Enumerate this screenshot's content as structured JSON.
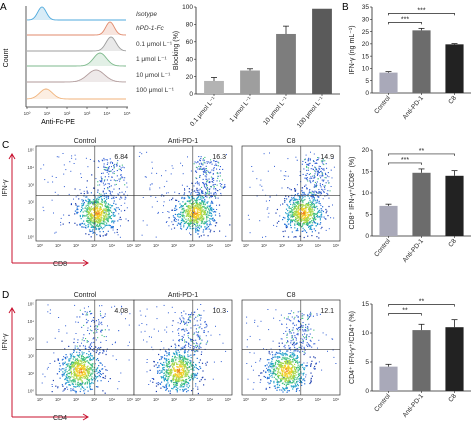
{
  "panel_labels": [
    "A",
    "B",
    "C",
    "D"
  ],
  "histogram": {
    "xlabel": "Anti-Fc-PE",
    "ylabel": "Count",
    "legend": [
      "Isotype",
      "hPD-1-Fc",
      "0.1 μmol L⁻¹",
      "1 μmol L⁻¹",
      "10 μmol L⁻¹",
      "100 μmol L⁻¹"
    ],
    "tick_labels": [
      "10⁰",
      "10¹",
      "10²",
      "10³",
      "10⁴",
      "10⁵"
    ],
    "colors": [
      "#4fa9dc",
      "#e0896b",
      "#9c9c9c",
      "#7db98c",
      "#b09a9a",
      "#f0b27a"
    ]
  },
  "flow_c": {
    "ylabel": "IFN-γ",
    "xlabel": "CD8",
    "panels": [
      {
        "title": "Control",
        "percent": "6.84"
      },
      {
        "title": "Anti-PD-1",
        "percent": "16.3"
      },
      {
        "title": "C8",
        "percent": "14.9"
      }
    ],
    "y_ticks": [
      "10⁵",
      "10⁴",
      "10³",
      "10²",
      "10¹",
      "10⁰"
    ],
    "x_ticks": [
      "10⁰",
      "10¹",
      "10²",
      "10³",
      "10⁴",
      "10⁵"
    ]
  },
  "flow_d": {
    "ylabel": "IFN-γ",
    "xlabel": "CD4",
    "panels": [
      {
        "title": "Control",
        "percent": "4.08"
      },
      {
        "title": "Anti-PD-1",
        "percent": "10.3"
      },
      {
        "title": "C8",
        "percent": "12.1"
      }
    ],
    "y_ticks": [
      "10⁵",
      "10⁴",
      "10³",
      "10²",
      "10¹",
      "10⁰"
    ],
    "x_ticks": [
      "10⁰",
      "10¹",
      "10²",
      "10³",
      "10⁴",
      "10⁵"
    ]
  },
  "chart_data": [
    {
      "id": "blocking",
      "type": "bar",
      "categories": [
        "0.1 μmol L⁻¹",
        "1 μmol L⁻¹",
        "10 μmol L⁻¹",
        "100 μmol L⁻¹"
      ],
      "values": [
        15,
        27,
        69,
        98
      ],
      "errors": [
        4,
        2,
        9,
        0
      ],
      "colors": [
        "#b3b3b3",
        "#9e9e9e",
        "#7d7d7d",
        "#5a5a5a"
      ],
      "ylabel": "Blocking (%)",
      "ylim": [
        0,
        100
      ],
      "yticks": [
        "0",
        "20",
        "40",
        "60",
        "80",
        "100"
      ]
    },
    {
      "id": "ifn_elisa",
      "type": "bar",
      "categories": [
        "Control",
        "Anti-PD-1",
        "C8"
      ],
      "values": [
        8.3,
        25.5,
        19.8
      ],
      "errors": [
        0.4,
        0.8,
        0.3
      ],
      "colors": [
        "#a9a9b9",
        "#6c6c6c",
        "#222222"
      ],
      "ylabel": "IFN-γ (ng mL⁻¹)",
      "ylim": [
        0,
        35
      ],
      "yticks": [
        "0",
        "5",
        "10",
        "15",
        "20",
        "25",
        "30",
        "35"
      ],
      "significance": [
        {
          "from": 0,
          "to": 1,
          "label": "***"
        },
        {
          "from": 0,
          "to": 2,
          "label": "***"
        }
      ]
    },
    {
      "id": "cd8_ifn",
      "type": "bar",
      "categories": [
        "Control",
        "Anti-PD-1",
        "C8"
      ],
      "values": [
        7.0,
        14.7,
        14.0
      ],
      "errors": [
        0.4,
        0.9,
        1.2
      ],
      "colors": [
        "#a9a9b9",
        "#6c6c6c",
        "#222222"
      ],
      "ylabel": "CD8⁺ IFN-γ⁺/CD8⁺ (%)",
      "ylim": [
        0,
        20
      ],
      "yticks": [
        "0",
        "5",
        "10",
        "15",
        "20"
      ],
      "significance": [
        {
          "from": 0,
          "to": 1,
          "label": "***"
        },
        {
          "from": 0,
          "to": 2,
          "label": "**"
        }
      ]
    },
    {
      "id": "cd4_ifn",
      "type": "bar",
      "categories": [
        "Control",
        "Anti-PD-1",
        "C8"
      ],
      "values": [
        4.2,
        10.5,
        11.0
      ],
      "errors": [
        0.4,
        1.0,
        1.3
      ],
      "colors": [
        "#a9a9b9",
        "#6c6c6c",
        "#222222"
      ],
      "ylabel": "CD4⁺ IFN-γ⁺/CD4⁺ (%)",
      "ylim": [
        0,
        15
      ],
      "yticks": [
        "0",
        "5",
        "10",
        "15"
      ],
      "significance": [
        {
          "from": 0,
          "to": 1,
          "label": "**"
        },
        {
          "from": 0,
          "to": 2,
          "label": "**"
        }
      ]
    }
  ]
}
